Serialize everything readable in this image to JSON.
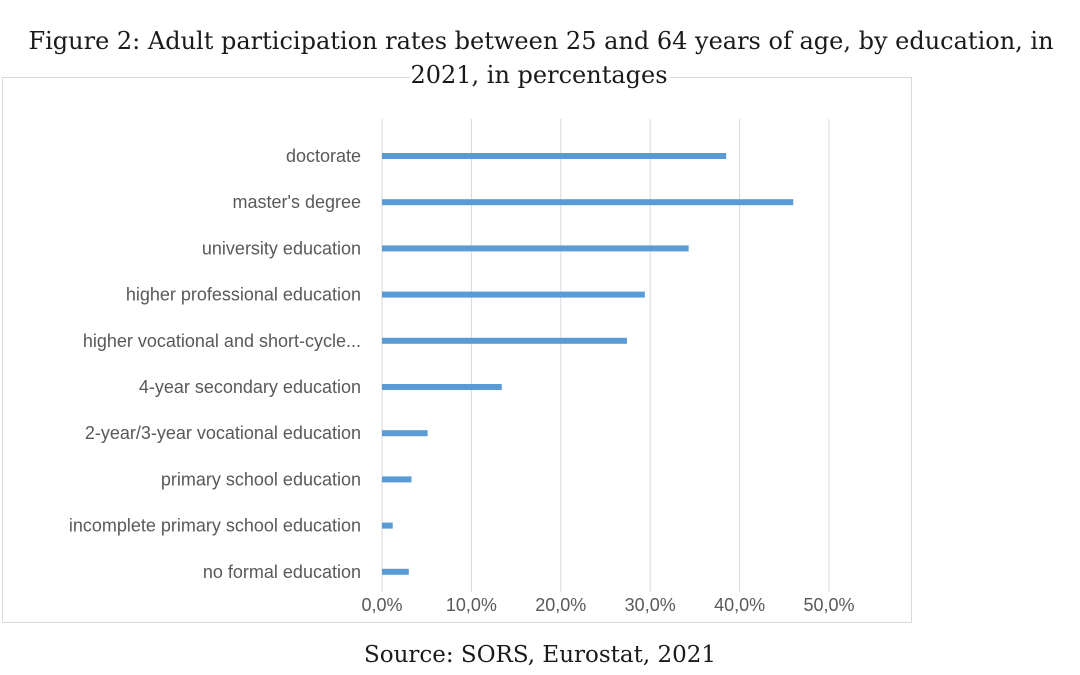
{
  "figure": {
    "title": "Figure 2: Adult participation rates between 25 and 64 years of age, by education, in 2021, in percentages",
    "source": "Source: SORS, Eurostat, 2021"
  },
  "chart_data": {
    "type": "bar",
    "orientation": "horizontal",
    "title": "Figure 2: Adult participation rates between 25 and 64 years of age, by education, in 2021, in percentages",
    "categories": [
      "doctorate",
      "master's degree",
      "university education",
      "higher professional education",
      "higher vocational and short-cycle...",
      "4-year secondary education",
      "2-year/3-year vocational education",
      "primary school education",
      "incomplete primary school education",
      "no formal education"
    ],
    "values": [
      38.5,
      46.0,
      34.3,
      29.4,
      27.4,
      13.4,
      5.1,
      3.3,
      1.2,
      3.0
    ],
    "xlim": [
      0,
      50
    ],
    "xticks": [
      0,
      10,
      20,
      30,
      40,
      50
    ],
    "xtick_labels": [
      "0,0%",
      "10,0%",
      "20,0%",
      "30,0%",
      "40,0%",
      "50,0%"
    ],
    "xlabel": "",
    "ylabel": "",
    "grid": "vertical",
    "legend": "none",
    "bar_color": "#5b9bd5",
    "grid_color": "#d9d9d9"
  }
}
